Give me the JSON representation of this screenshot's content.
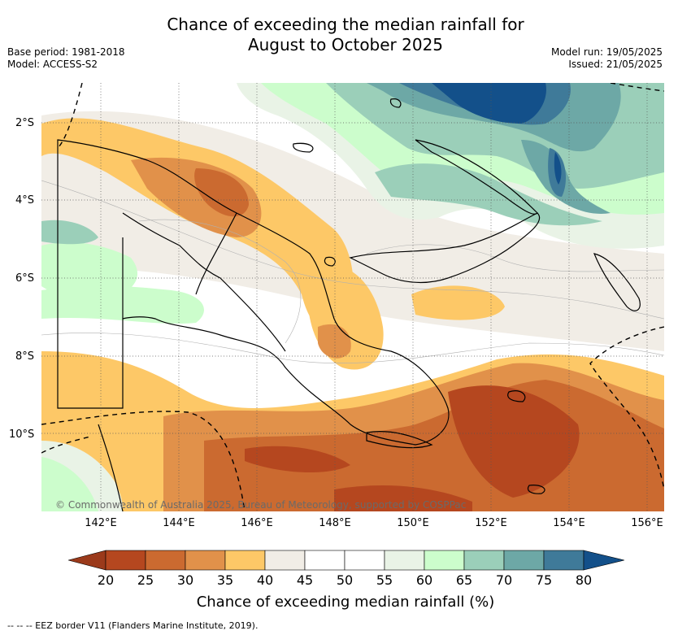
{
  "title_line1": "Chance of exceeding the median rainfall for",
  "title_line2": "August to October 2025",
  "base_period": "Base period: 1981-2018",
  "model": "Model: ACCESS-S2",
  "model_run": "Model run: 19/05/2025",
  "issued": "Issued: 21/05/2025",
  "lat_labels": [
    "2°S",
    "4°S",
    "6°S",
    "8°S",
    "10°S"
  ],
  "lon_labels": [
    "142°E",
    "144°E",
    "146°E",
    "148°E",
    "150°E",
    "152°E",
    "154°E",
    "156°E"
  ],
  "copyright": "© Commonwealth of Australia 2025, Bureau of Meteorology, supported by COSPPac",
  "colorbar": {
    "ticks": [
      "20",
      "25",
      "30",
      "35",
      "40",
      "45",
      "50",
      "55",
      "60",
      "65",
      "70",
      "75",
      "80"
    ],
    "colors": [
      "#9b3a1b",
      "#b5471f",
      "#cb6a30",
      "#e1914a",
      "#fdc867",
      "#f1ede6",
      "#ffffff",
      "#ffffff",
      "#e9f3e6",
      "#ccfdcc",
      "#9bcfb9",
      "#6da8a6",
      "#3f7a99",
      "#13508a"
    ],
    "label": "Chance of exceeding median rainfall (%)"
  },
  "footnote": "--  --  -- EEZ border V11 (Flanders Marine Institute, 2019)."
}
